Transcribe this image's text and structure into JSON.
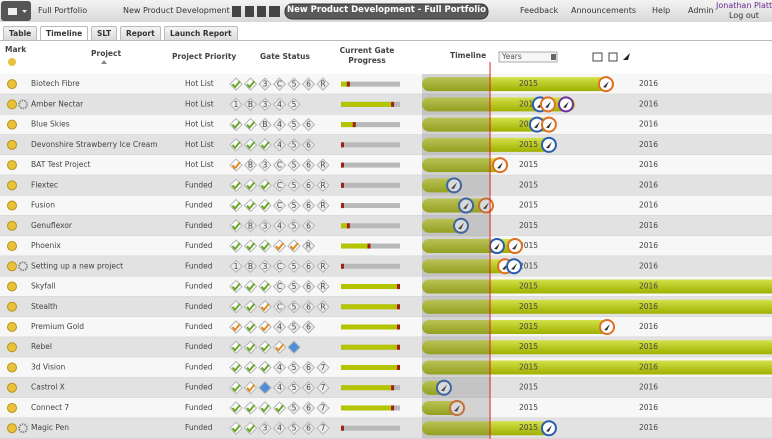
{
  "header": {
    "portfolio": "Full Portfolio",
    "process": "New Product Development",
    "title": "New Product Development - Full Portfolio",
    "links": [
      "Feedback",
      "Announcements",
      "Help",
      "Admin"
    ],
    "user": "Jonathan Platt",
    "logout": "Log out"
  },
  "tabs": {
    "items": [
      "Table",
      "Timeline",
      "SLT",
      "Report",
      "Launch Report"
    ],
    "active": 1
  },
  "columns": {
    "mark": "Mark",
    "project": "Project",
    "priority": "Project Priority",
    "gates": "Gate Status",
    "progress": "Current Gate Progress"
  },
  "timeline": {
    "title": "Timeline",
    "scale_label": "Years",
    "range": [
      2014.25,
      2017.167
    ],
    "today": 2014.817,
    "years": [
      2015,
      2016
    ]
  },
  "rows": [
    {
      "name": "Biotech Fibre",
      "priority": "Hot List",
      "progress": 15,
      "gates": [
        {
          "state": "done"
        },
        {
          "state": "done"
        },
        {
          "state": "open",
          "label": "3"
        },
        {
          "state": "open",
          "label": "C"
        },
        {
          "state": "open",
          "label": "5"
        },
        {
          "state": "open",
          "label": "6"
        },
        {
          "state": "open",
          "label": "R"
        }
      ],
      "start": 2014.25,
      "end": 2015.85,
      "milestones": [
        {
          "value": 2015.783,
          "color": "#e07020"
        }
      ]
    },
    {
      "name": "Amber Nectar",
      "priority": "Hot List",
      "gear": true,
      "progress": 90,
      "gates": [
        {
          "state": "open",
          "label": "1"
        },
        {
          "state": "open",
          "label": "B"
        },
        {
          "state": "open",
          "label": "3"
        },
        {
          "state": "open",
          "label": "4"
        },
        {
          "state": "open",
          "label": "5"
        }
      ],
      "start": 2014.25,
      "end": 2015.525,
      "milestones": [
        {
          "value": 2015.233,
          "color": "#2a5db0"
        },
        {
          "value": 2015.3,
          "color": "#e07020"
        },
        {
          "value": 2015.45,
          "color": "#7030a0"
        }
      ]
    },
    {
      "name": "Blue Skies",
      "priority": "Hot List",
      "progress": 25,
      "gates": [
        {
          "state": "done"
        },
        {
          "state": "done"
        },
        {
          "state": "open",
          "label": "B"
        },
        {
          "state": "open",
          "label": "4"
        },
        {
          "state": "open",
          "label": "5"
        },
        {
          "state": "open",
          "label": "6"
        }
      ],
      "start": 2014.25,
      "end": 2015.358,
      "milestones": [
        {
          "value": 2015.208,
          "color": "#2a5db0"
        },
        {
          "value": 2015.308,
          "color": "#e07020"
        }
      ]
    },
    {
      "name": "Devonshire Strawberry Ice Cream",
      "priority": "Hot List",
      "progress": 3,
      "gates": [
        {
          "state": "done"
        },
        {
          "state": "done"
        },
        {
          "state": "done"
        },
        {
          "state": "open",
          "label": "4"
        },
        {
          "state": "open",
          "label": "5"
        },
        {
          "state": "open",
          "label": "6"
        }
      ],
      "start": 2014.25,
      "end": 2015.358,
      "milestones": [
        {
          "value": 2015.308,
          "color": "#2a5db0"
        }
      ]
    },
    {
      "name": "BAT Test Project",
      "priority": "Hot List",
      "progress": 3,
      "gates": [
        {
          "state": "partial"
        },
        {
          "state": "open",
          "label": "B"
        },
        {
          "state": "open",
          "label": "3"
        },
        {
          "state": "open",
          "label": "C"
        },
        {
          "state": "open",
          "label": "5"
        },
        {
          "state": "open",
          "label": "6"
        },
        {
          "state": "open",
          "label": "R"
        }
      ],
      "start": 2014.25,
      "end": 2014.967,
      "milestones": [
        {
          "value": 2014.9,
          "color": "#e07020"
        }
      ]
    },
    {
      "name": "Flextec",
      "priority": "Funded",
      "progress": 3,
      "gates": [
        {
          "state": "done"
        },
        {
          "state": "done"
        },
        {
          "state": "done"
        },
        {
          "state": "open",
          "label": "C"
        },
        {
          "state": "open",
          "label": "5"
        },
        {
          "state": "open",
          "label": "6"
        },
        {
          "state": "open",
          "label": "R"
        }
      ],
      "start": 2014.25,
      "end": 2014.567,
      "milestones": [
        {
          "value": 2014.517,
          "color": "#2a5db0"
        }
      ]
    },
    {
      "name": "Fusion",
      "priority": "Funded",
      "progress": 3,
      "gates": [
        {
          "state": "done"
        },
        {
          "state": "done"
        },
        {
          "state": "done"
        },
        {
          "state": "open",
          "label": "C"
        },
        {
          "state": "open",
          "label": "5"
        },
        {
          "state": "open",
          "label": "6"
        },
        {
          "state": "open",
          "label": "R"
        }
      ],
      "start": 2014.25,
      "end": 2014.833,
      "milestones": [
        {
          "value": 2014.617,
          "color": "#2a5db0"
        },
        {
          "value": 2014.783,
          "color": "#e07020"
        }
      ]
    },
    {
      "name": "Genuflexor",
      "priority": "Funded",
      "progress": 15,
      "gates": [
        {
          "state": "done"
        },
        {
          "state": "open",
          "label": "B"
        },
        {
          "state": "open",
          "label": "3"
        },
        {
          "state": "open",
          "label": "4"
        },
        {
          "state": "open",
          "label": "5"
        },
        {
          "state": "open",
          "label": "6"
        }
      ],
      "start": 2014.25,
      "end": 2014.633,
      "milestones": [
        {
          "value": 2014.575,
          "color": "#2a5db0"
        }
      ]
    },
    {
      "name": "Phoenix",
      "priority": "Funded",
      "progress": 50,
      "gates": [
        {
          "state": "done"
        },
        {
          "state": "done"
        },
        {
          "state": "done"
        },
        {
          "state": "partial"
        },
        {
          "state": "partial"
        },
        {
          "state": "open",
          "label": "R"
        }
      ],
      "start": 2014.25,
      "end": 2015.067,
      "milestones": [
        {
          "value": 2014.875,
          "color": "#2a5db0"
        },
        {
          "value": 2015.025,
          "color": "#e07020"
        }
      ]
    },
    {
      "name": "Setting up a new project",
      "priority": "Funded",
      "gear": true,
      "progress": 3,
      "gates": [
        {
          "state": "open",
          "label": "1"
        },
        {
          "state": "open",
          "label": "B"
        },
        {
          "state": "open",
          "label": "3"
        },
        {
          "state": "open",
          "label": "C"
        },
        {
          "state": "open",
          "label": "5"
        },
        {
          "state": "open",
          "label": "6"
        },
        {
          "state": "open",
          "label": "R"
        }
      ],
      "start": 2014.25,
      "end": 2015.05,
      "milestones": [
        {
          "value": 2014.942,
          "color": "#e07020"
        },
        {
          "value": 2015.017,
          "color": "#2a5db0"
        }
      ]
    },
    {
      "name": "Skyfall",
      "priority": "Funded",
      "progress": 100,
      "gates": [
        {
          "state": "done"
        },
        {
          "state": "done"
        },
        {
          "state": "done"
        },
        {
          "state": "open",
          "label": "C"
        },
        {
          "state": "open",
          "label": "5"
        },
        {
          "state": "open",
          "label": "6"
        },
        {
          "state": "open",
          "label": "R"
        }
      ],
      "start": 2014.25,
      "end": 2017.5,
      "milestones": []
    },
    {
      "name": "Stealth",
      "priority": "Funded",
      "progress": 100,
      "gates": [
        {
          "state": "done"
        },
        {
          "state": "done"
        },
        {
          "state": "partial"
        },
        {
          "state": "open",
          "label": "C"
        },
        {
          "state": "open",
          "label": "5"
        },
        {
          "state": "open",
          "label": "6"
        },
        {
          "state": "open",
          "label": "R"
        }
      ],
      "start": 2014.25,
      "end": 2017.5,
      "milestones": []
    },
    {
      "name": "Premium Gold",
      "priority": "Funded",
      "progress": 100,
      "gates": [
        {
          "state": "partial"
        },
        {
          "state": "done"
        },
        {
          "state": "partial"
        },
        {
          "state": "open",
          "label": "4"
        },
        {
          "state": "open",
          "label": "5"
        },
        {
          "state": "open",
          "label": "6"
        }
      ],
      "start": 2014.25,
      "end": 2015.85,
      "milestones": [
        {
          "value": 2015.792,
          "color": "#e07020"
        }
      ]
    },
    {
      "name": "Rebel",
      "priority": "Funded",
      "progress": 100,
      "gates": [
        {
          "state": "done"
        },
        {
          "state": "done"
        },
        {
          "state": "done"
        },
        {
          "state": "partial"
        },
        {
          "state": "current"
        }
      ],
      "start": 2014.25,
      "end": 2017.5,
      "milestones": []
    },
    {
      "name": "3d Vision",
      "priority": "Funded",
      "progress": 100,
      "gates": [
        {
          "state": "done"
        },
        {
          "state": "done"
        },
        {
          "state": "done"
        },
        {
          "state": "open",
          "label": "4"
        },
        {
          "state": "open",
          "label": "5"
        },
        {
          "state": "open",
          "label": "6"
        },
        {
          "state": "open",
          "label": "7"
        }
      ],
      "start": 2014.25,
      "end": 2017.5,
      "milestones": []
    },
    {
      "name": "Castrol X",
      "priority": "Funded",
      "progress": 90,
      "gates": [
        {
          "state": "done"
        },
        {
          "state": "partial"
        },
        {
          "state": "current"
        },
        {
          "state": "open",
          "label": "4"
        },
        {
          "state": "open",
          "label": "5"
        },
        {
          "state": "open",
          "label": "6"
        },
        {
          "state": "open",
          "label": "7"
        }
      ],
      "start": 2014.25,
      "end": 2014.483,
      "milestones": [
        {
          "value": 2014.433,
          "color": "#2a5db0"
        }
      ]
    },
    {
      "name": "Connect 7",
      "priority": "Funded",
      "progress": 90,
      "gates": [
        {
          "state": "done"
        },
        {
          "state": "done"
        },
        {
          "state": "done"
        },
        {
          "state": "done"
        },
        {
          "state": "open",
          "label": "5"
        },
        {
          "state": "open",
          "label": "6"
        },
        {
          "state": "open",
          "label": "7"
        }
      ],
      "start": 2014.25,
      "end": 2014.6,
      "milestones": [
        {
          "value": 2014.542,
          "color": "#e07020"
        }
      ]
    },
    {
      "name": "Magic Pen",
      "priority": "Funded",
      "gear": true,
      "progress": 3,
      "gates": [
        {
          "state": "done"
        },
        {
          "state": "done"
        },
        {
          "state": "open",
          "label": "3"
        },
        {
          "state": "open",
          "label": "4"
        },
        {
          "state": "open",
          "label": "5"
        },
        {
          "state": "open",
          "label": "6"
        },
        {
          "state": "open",
          "label": "7"
        }
      ],
      "start": 2014.25,
      "end": 2015.358,
      "milestones": [
        {
          "value": 2015.308,
          "color": "#2a5db0"
        }
      ]
    }
  ]
}
